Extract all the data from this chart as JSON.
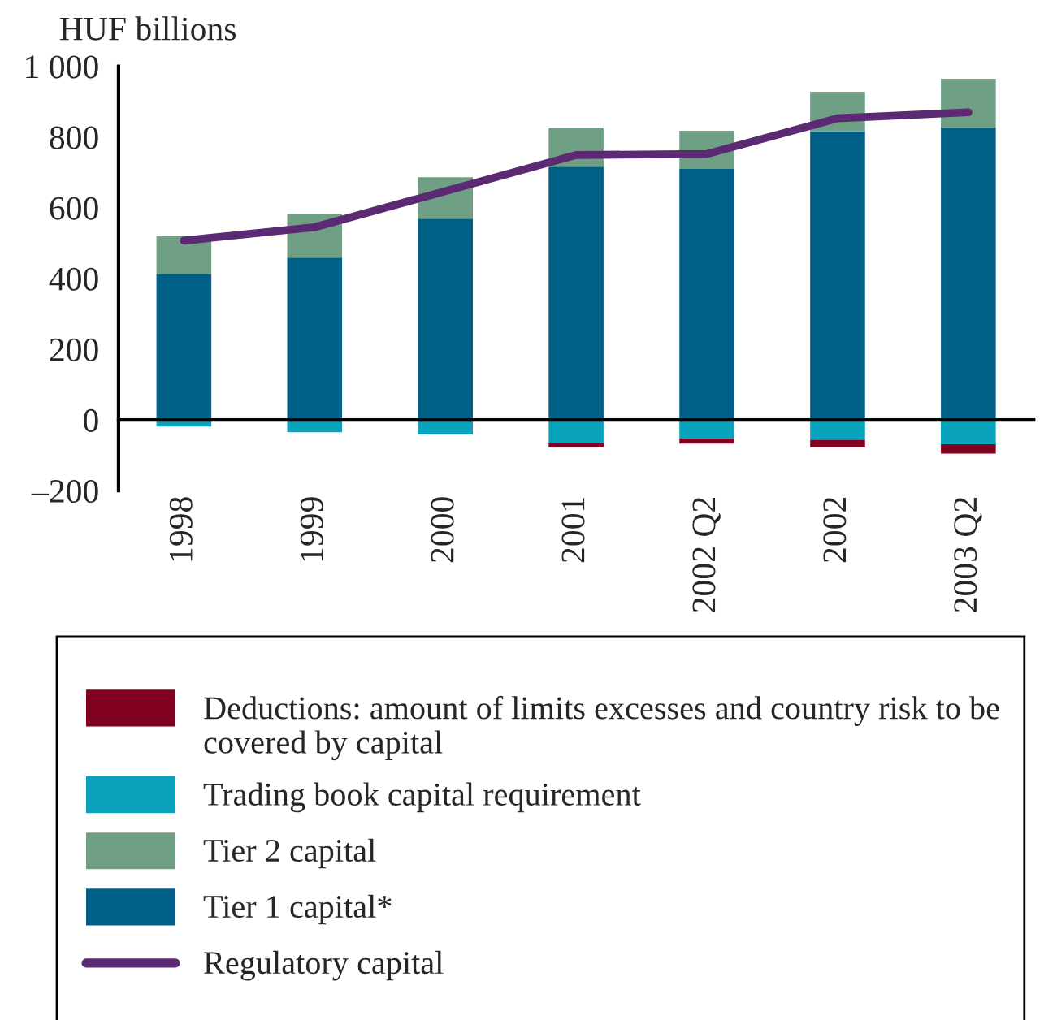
{
  "chart_data": {
    "type": "bar",
    "stacked": true,
    "ylabel": "HUF billions",
    "categories": [
      "1998",
      "1999",
      "2000",
      "2001",
      "2002 Q2",
      "2002",
      "2003 Q2"
    ],
    "ylim": [
      -200,
      1000
    ],
    "yticks": [
      {
        "value": -200,
        "label": "–200"
      },
      0,
      200,
      400,
      600,
      800,
      {
        "value": 1000,
        "label": "1 000"
      }
    ],
    "grid": false,
    "legend": "bottom",
    "series": [
      {
        "name": "Tier 1 capital*",
        "color": "#005f87",
        "values": [
          413,
          459,
          569,
          716,
          710,
          816,
          827
        ]
      },
      {
        "name": "Tier 2 capital",
        "color": "#6f9f85",
        "values": [
          107,
          123,
          117,
          111,
          108,
          112,
          138
        ]
      },
      {
        "name": "Trading book capital requirement",
        "color": "#0aa3bd",
        "values": [
          -19,
          -35,
          -41,
          -65,
          -52,
          -56,
          -69
        ]
      },
      {
        "name": "Deductions: amount of limits excesses and country risk to be covered by capital",
        "color": "#800020",
        "values": [
          null,
          null,
          null,
          -13,
          -15,
          -22,
          -26
        ]
      },
      {
        "name": "Regulatory capital",
        "type": "line",
        "color": "#5b2a73",
        "line_style": "solid",
        "marker": "none",
        "values": [
          507,
          545,
          647,
          749,
          752,
          853,
          870
        ]
      }
    ]
  }
}
